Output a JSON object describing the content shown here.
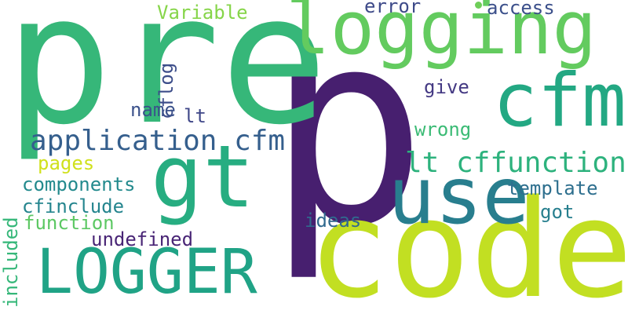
{
  "words": {
    "p": {
      "text": "p",
      "color": "#471f6f"
    },
    "pre": {
      "text": "pre",
      "color": "#36b779"
    },
    "code": {
      "text": "code",
      "color": "#c2df22"
    },
    "logging": {
      "text": "logging",
      "color": "#63cb5f"
    },
    "cfm": {
      "text": "cfm",
      "color": "#23a883"
    },
    "gt": {
      "text": "gt",
      "color": "#27ad81"
    },
    "use": {
      "text": "use",
      "color": "#287e8e"
    },
    "logger": {
      "text": "LOGGER",
      "color": "#20a386"
    },
    "application_cfm": {
      "text": "application cfm",
      "color": "#355f8d"
    },
    "lt_cffunction": {
      "text": "lt cffunction",
      "color": "#2db27d"
    },
    "variable": {
      "text": "Variable",
      "color": "#86d549"
    },
    "error": {
      "text": "error",
      "color": "#3e4a89"
    },
    "access": {
      "text": "access",
      "color": "#3c508b"
    },
    "cflog": {
      "text": "cflog",
      "color": "#3d4e8a"
    },
    "name": {
      "text": "name",
      "color": "#3b528b"
    },
    "lt": {
      "text": "lt",
      "color": "#3f4788"
    },
    "give": {
      "text": "give",
      "color": "#443983"
    },
    "wrong": {
      "text": "wrong",
      "color": "#3bbb75"
    },
    "pages": {
      "text": "pages",
      "color": "#d0e11c"
    },
    "components": {
      "text": "components",
      "color": "#238a8d"
    },
    "template": {
      "text": "template",
      "color": "#2e6f8e"
    },
    "cfinclude": {
      "text": "cfinclude",
      "color": "#25858e"
    },
    "function": {
      "text": "function",
      "color": "#5cc863"
    },
    "got": {
      "text": "got",
      "color": "#277f8e"
    },
    "undefined": {
      "text": "undefined",
      "color": "#482475"
    },
    "ideas": {
      "text": "ideas",
      "color": "#30698e"
    },
    "included": {
      "text": "included",
      "color": "#35b779"
    }
  },
  "dot_color": "#6ece58"
}
